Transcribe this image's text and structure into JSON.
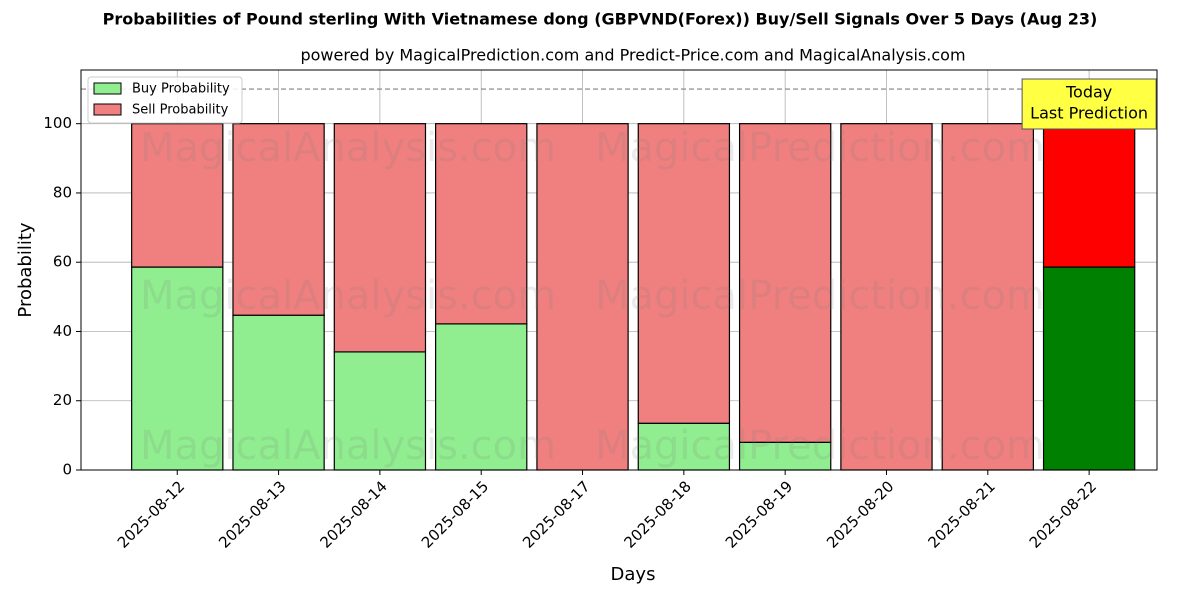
{
  "chart_data": {
    "type": "stacked_bar",
    "title": "Probabilities of Pound sterling With Vietnamese dong (GBPVND(Forex)) Buy/Sell Signals Over 5 Days (Aug 23)",
    "subtitle": "powered by MagicalPrediction.com and Predict-Price.com and MagicalAnalysis.com",
    "x_label": "Days",
    "y_label": "Probability",
    "categories": [
      "2025-08-12",
      "2025-08-13",
      "2025-08-14",
      "2025-08-15",
      "2025-08-17",
      "2025-08-18",
      "2025-08-19",
      "2025-08-20",
      "2025-08-21",
      "2025-08-22"
    ],
    "series": [
      {
        "name": "Buy Probability",
        "color": "#90ee90",
        "colors": [
          "#90ee90",
          "#90ee90",
          "#90ee90",
          "#90ee90",
          "#90ee90",
          "#90ee90",
          "#90ee90",
          "#90ee90",
          "#90ee90",
          "#008000"
        ],
        "values": [
          58.6,
          44.7,
          34.1,
          42.2,
          0,
          13.5,
          8.0,
          0,
          0,
          58.6
        ]
      },
      {
        "name": "Sell Probability",
        "color": "#f08080",
        "colors": [
          "#f08080",
          "#f08080",
          "#f08080",
          "#f08080",
          "#f08080",
          "#f08080",
          "#f08080",
          "#f08080",
          "#f08080",
          "#ff0000"
        ],
        "values": [
          41.4,
          55.3,
          65.9,
          57.8,
          100,
          86.5,
          92.0,
          100,
          100,
          41.4
        ]
      }
    ],
    "ylim": [
      0,
      115.5
    ],
    "yticks": [
      0,
      20,
      40,
      60,
      80,
      100
    ],
    "reference_line": 110,
    "grid": true,
    "legend": "upper left",
    "annotation": [
      "Today",
      "Last Prediction"
    ],
    "watermarks": [
      "MagicalAnalysis.com",
      "MagicalPrediction.com"
    ]
  }
}
